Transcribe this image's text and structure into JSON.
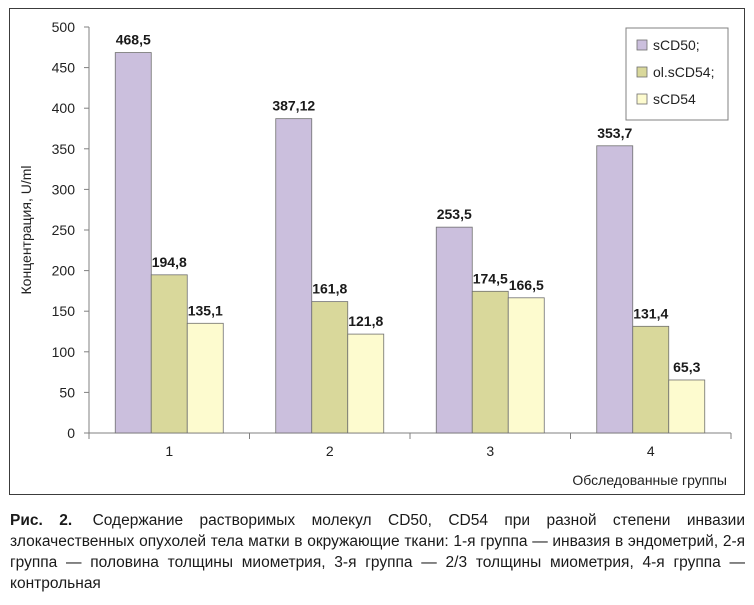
{
  "chart_data": {
    "type": "bar",
    "categories": [
      "1",
      "2",
      "3",
      "4"
    ],
    "series": [
      {
        "name": "sCD50;",
        "values": [
          468.5,
          387.12,
          253.5,
          353.7
        ],
        "labels": [
          "468,5",
          "387,12",
          "253,5",
          "353,7"
        ],
        "color": "#cbbfdd"
      },
      {
        "name": "ol.sCD54;",
        "values": [
          194.8,
          161.8,
          174.5,
          131.4
        ],
        "labels": [
          "194,8",
          "161,8",
          "174,5",
          "131,4"
        ],
        "color": "#d9d89b"
      },
      {
        "name": "sCD54",
        "values": [
          135.1,
          121.8,
          166.5,
          65.3
        ],
        "labels": [
          "135,1",
          "121,8",
          "166,5",
          "65,3"
        ],
        "color": "#fdfbcf"
      }
    ],
    "ylabel": "Концентрация, U/ml",
    "xlabel": "Обследованные группы",
    "ylim": [
      0,
      500
    ],
    "yticks": [
      0,
      50,
      100,
      150,
      200,
      250,
      300,
      350,
      400,
      450,
      500
    ],
    "grid": false,
    "legend_position": "top-right"
  },
  "caption": {
    "label": "Рис. 2.",
    "text": "Содержание растворимых молекул CD50, CD54 при разной степени инвазии злокачественных опухолей тела матки в окружающие ткани: 1-я группа — инвазия в эндометрий, 2-я группа — половина толщины миометрия, 3-я группа — 2/3 толщины миометрия, 4-я группа — контрольная"
  }
}
